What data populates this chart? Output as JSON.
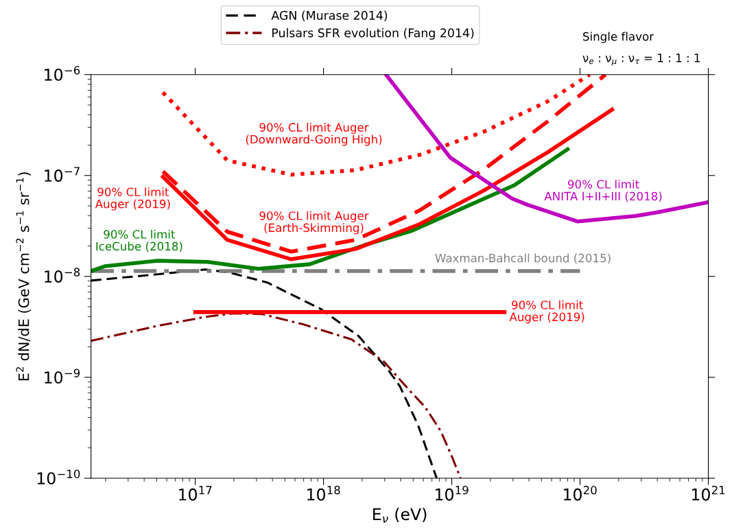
{
  "chart_data": {
    "type": "line",
    "log": "xy",
    "xlabel": "E$_{ν}$ (eV)",
    "ylabel": "E$^{2}$ dN/dE (GeV cm$^{−2}$ s$^{−1}$ sr$^{−1}$)",
    "xlim": [
      1.54e+16,
      1e+21
    ],
    "ylim": [
      1e-10,
      1e-06
    ],
    "xticks": [
      {
        "value": 1e+17,
        "label": "10$^{17}$"
      },
      {
        "value": 1e+18,
        "label": "10$^{18}$"
      },
      {
        "value": 1e+19,
        "label": "10$^{19}$"
      },
      {
        "value": 1e+20,
        "label": "10$^{20}$"
      },
      {
        "value": 1e+21,
        "label": "10$^{21}$"
      }
    ],
    "yticks": [
      {
        "value": 1e-10,
        "label": "10$^{−10}$"
      },
      {
        "value": 1e-09,
        "label": "10$^{−9}$"
      },
      {
        "value": 1e-08,
        "label": "10$^{−8}$"
      },
      {
        "value": 1e-07,
        "label": "10$^{−7}$"
      },
      {
        "value": 1e-06,
        "label": "10$^{−6}$"
      }
    ],
    "grid": false,
    "legend": "top",
    "marker": "none",
    "series": [
      {
        "name": "AGN (Murase 2014)",
        "color": "#000000",
        "line_style": "dashed",
        "x": [
          1.54e+16,
          5.1e+16,
          1.2e+17,
          1.81e+17,
          3.64e+17,
          9.4e+17,
          1.88e+18,
          3.22e+18,
          3.93e+18,
          5.47e+18,
          7.62e+18
        ],
        "values": [
          9.1e-09,
          1.05e-08,
          1.17e-08,
          1.1e-08,
          8.7e-09,
          4.79e-09,
          2.56e-09,
          1.17e-09,
          8.2e-10,
          3.34e-10,
          1e-10
        ]
      },
      {
        "name": "Pulsars SFR evolution (Fang 2014)",
        "color": "#800000",
        "line_style": "dashdot",
        "x": [
          1.54e+16,
          5.1e+16,
          1.2e+17,
          1.97e+17,
          3.34e+17,
          7e+17,
          1.66e+18,
          2.96e+18,
          4.83e+18,
          6.18e+18,
          8.2e+18,
          1.01e+19,
          1.17e+19
        ],
        "values": [
          2.3e-09,
          3.24e-09,
          3.97e-09,
          4.3e-09,
          4.23e-09,
          3.34e-09,
          2.37e-09,
          1.43e-09,
          7.1e-10,
          5.1e-10,
          2.94e-10,
          1.6e-10,
          1e-10
        ]
      },
      {
        "color": "#808080",
        "line_style": "dashdot",
        "x": [
          1.54e+16,
          1e+20
        ],
        "values": [
          1.13e-08,
          1.13e-08
        ]
      },
      {
        "color": "#008000",
        "line_style": "solid",
        "x": [
          1.54e+16,
          1.97e+16,
          5.1e+16,
          1.25e+17,
          3.1e+17,
          7.8e+17,
          2.1e+18,
          4.8e+18,
          3.07e+19,
          8e+19
        ],
        "values": [
          1.13e-08,
          1.26e-08,
          1.43e-08,
          1.39e-08,
          1.19e-08,
          1.32e-08,
          2.05e-08,
          2.81e-08,
          8e-08,
          1.82e-07
        ]
      },
      {
        "color": "#ff0000",
        "line_style": "solid",
        "x": [
          5.6e+16,
          1.78e+17,
          5.6e+17,
          1.78e+18,
          5.6e+18,
          1.78e+19,
          5.6e+19,
          1.78e+20
        ],
        "values": [
          9.7e-08,
          2.3e-08,
          1.48e-08,
          1.87e-08,
          3.29e-08,
          7.1e-08,
          1.7e-07,
          4.5e-07
        ]
      },
      {
        "color": "#ff0000",
        "line_style": "dashed",
        "x": [
          5.6e+16,
          1.78e+17,
          5.6e+17,
          1.78e+18,
          5.6e+18,
          1.78e+19,
          5.6e+19,
          1.58e+20
        ],
        "values": [
          1.1e-07,
          2.77e-08,
          1.76e-08,
          2.3e-08,
          4.5e-08,
          1.15e-07,
          3.44e-07,
          1e-06
        ]
      },
      {
        "color": "#ff0000",
        "line_style": "dotted",
        "x": [
          5.6e+16,
          1.78e+17,
          5.6e+17,
          1.78e+18,
          5.6e+18,
          1.78e+19,
          5.6e+19,
          1.19e+20
        ],
        "values": [
          6.65e-07,
          1.41e-07,
          1.02e-07,
          1.13e-07,
          1.6e-07,
          2.72e-07,
          5.43e-07,
          1e-06
        ]
      },
      {
        "color": "#ff0000",
        "line_style": "solid",
        "x": [
          1e+17,
          2.58e+19
        ],
        "values": [
          4.43e-09,
          4.43e-09
        ]
      },
      {
        "color": "#bf00bf",
        "line_style": "solid",
        "x": [
          3.07e+18,
          3.34e+18,
          9.75e+18,
          2.96e+19,
          3.78e+19,
          9.6e+19,
          2.71e+20,
          3.93e+20,
          1e+21
        ],
        "values": [
          1e-06,
          8.7e-07,
          1.5e-07,
          5.9e-08,
          5.2e-08,
          3.5e-08,
          3.97e-08,
          4.3e-08,
          5.43e-08
        ]
      }
    ],
    "annotations": [
      "90% CL limit Auger\n(Downward-Going High)",
      "90% CL limit\nAuger (2019)",
      "90% CL limit Auger\n(Earth-Skimming)",
      "90% CL limit\nIceCube (2018)",
      "Waxman-Bahcall bound (2015)",
      "90% CL limit\nAuger (2019)",
      "90% CL limit\nANITA I+II+III (2018)",
      "Single flavor",
      "ν$_{e}$ : ν$_{μ}$ : ν$_{τ}$ = 1 : 1 : 1"
    ]
  }
}
